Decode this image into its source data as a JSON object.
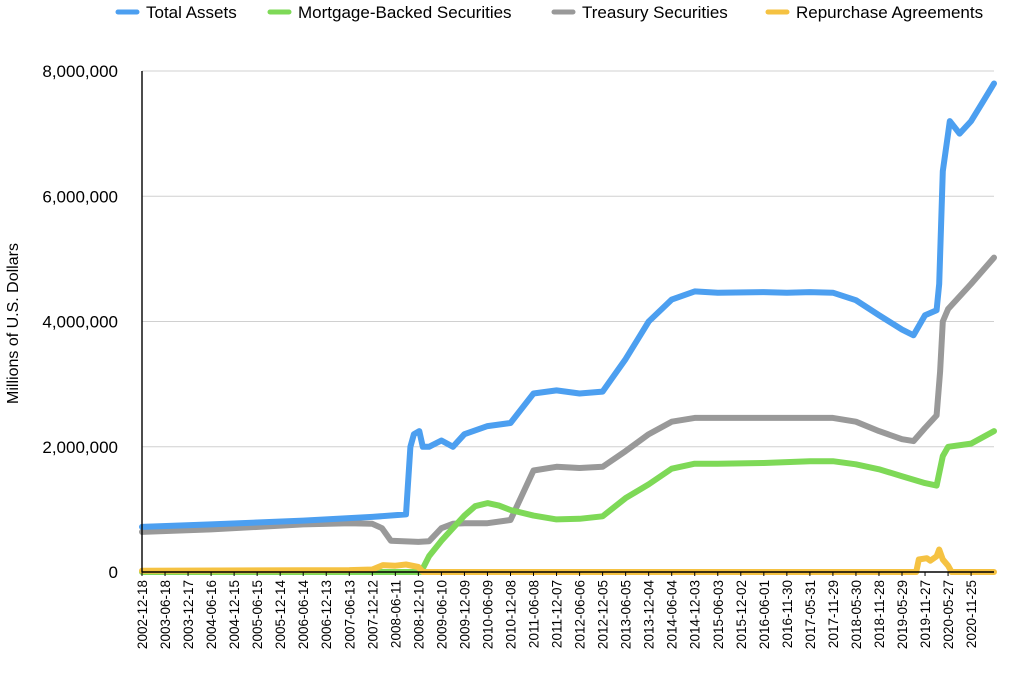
{
  "chart_data": {
    "type": "line",
    "title": "",
    "xlabel": "",
    "ylabel": "Millions of U.S. Dollars",
    "ylim": [
      0,
      8000000
    ],
    "yticks": [
      0,
      2000000,
      4000000,
      6000000,
      8000000
    ],
    "ytick_labels": [
      "0",
      "2,000,000",
      "4,000,000",
      "6,000,000",
      "8,000,000"
    ],
    "xlim": [
      "2002-12-18",
      "2021-05-25"
    ],
    "xtick_labels": [
      "2002-12-18",
      "2003-06-18",
      "2003-12-17",
      "2004-06-16",
      "2004-12-15",
      "2005-06-15",
      "2005-12-14",
      "2006-06-14",
      "2006-12-13",
      "2007-06-13",
      "2007-12-12",
      "2008-06-11",
      "2008-12-10",
      "2009-06-10",
      "2009-12-09",
      "2010-06-09",
      "2010-12-08",
      "2011-06-08",
      "2011-12-07",
      "2012-06-06",
      "2012-12-05",
      "2013-06-05",
      "2013-12-04",
      "2014-06-04",
      "2014-12-03",
      "2015-06-03",
      "2015-12-02",
      "2016-06-01",
      "2016-11-30",
      "2017-05-31",
      "2017-11-29",
      "2018-05-30",
      "2018-11-28",
      "2019-05-29",
      "2019-11-27",
      "2020-05-27",
      "2020-11-25"
    ],
    "grid": true,
    "legend_position": "top",
    "series": [
      {
        "name": "Total Assets",
        "color": "#4c9ff0",
        "points": [
          [
            "2002-12-18",
            720000
          ],
          [
            "2004-06-16",
            760000
          ],
          [
            "2006-06-14",
            820000
          ],
          [
            "2007-06-13",
            860000
          ],
          [
            "2007-12-12",
            880000
          ],
          [
            "2008-09-03",
            920000
          ],
          [
            "2008-10-08",
            2000000
          ],
          [
            "2008-11-05",
            2200000
          ],
          [
            "2008-12-17",
            2250000
          ],
          [
            "2009-01-14",
            2000000
          ],
          [
            "2009-03-04",
            2000000
          ],
          [
            "2009-06-10",
            2100000
          ],
          [
            "2009-09-09",
            2000000
          ],
          [
            "2009-12-09",
            2200000
          ],
          [
            "2010-06-09",
            2330000
          ],
          [
            "2010-12-08",
            2380000
          ],
          [
            "2011-06-08",
            2850000
          ],
          [
            "2011-12-07",
            2900000
          ],
          [
            "2012-06-06",
            2850000
          ],
          [
            "2012-12-05",
            2880000
          ],
          [
            "2013-06-05",
            3400000
          ],
          [
            "2013-12-04",
            4000000
          ],
          [
            "2014-06-04",
            4350000
          ],
          [
            "2014-12-03",
            4480000
          ],
          [
            "2015-06-03",
            4460000
          ],
          [
            "2016-06-01",
            4470000
          ],
          [
            "2016-11-30",
            4460000
          ],
          [
            "2017-05-31",
            4470000
          ],
          [
            "2017-11-29",
            4460000
          ],
          [
            "2018-05-30",
            4340000
          ],
          [
            "2018-11-28",
            4100000
          ],
          [
            "2019-05-29",
            3870000
          ],
          [
            "2019-08-28",
            3780000
          ],
          [
            "2019-11-27",
            4100000
          ],
          [
            "2020-02-26",
            4180000
          ],
          [
            "2020-03-18",
            4600000
          ],
          [
            "2020-04-15",
            6400000
          ],
          [
            "2020-05-27",
            7000000
          ],
          [
            "2020-06-10",
            7200000
          ],
          [
            "2020-08-26",
            7000000
          ],
          [
            "2020-11-25",
            7200000
          ],
          [
            "2021-02-24",
            7500000
          ],
          [
            "2021-05-25",
            7800000
          ]
        ]
      },
      {
        "name": "Mortgage-Backed Securities",
        "color": "#7ed957",
        "points": [
          [
            "2002-12-18",
            0
          ],
          [
            "2008-12-31",
            0
          ],
          [
            "2009-03-04",
            250000
          ],
          [
            "2009-06-10",
            500000
          ],
          [
            "2009-12-09",
            900000
          ],
          [
            "2010-03-03",
            1050000
          ],
          [
            "2010-06-09",
            1100000
          ],
          [
            "2010-09-08",
            1060000
          ],
          [
            "2010-12-08",
            990000
          ],
          [
            "2011-06-08",
            900000
          ],
          [
            "2011-12-07",
            840000
          ],
          [
            "2012-06-06",
            850000
          ],
          [
            "2012-12-05",
            890000
          ],
          [
            "2013-06-05",
            1180000
          ],
          [
            "2013-12-04",
            1400000
          ],
          [
            "2014-06-04",
            1650000
          ],
          [
            "2014-12-03",
            1730000
          ],
          [
            "2015-06-03",
            1730000
          ],
          [
            "2016-06-01",
            1740000
          ],
          [
            "2017-05-31",
            1770000
          ],
          [
            "2017-11-29",
            1770000
          ],
          [
            "2018-05-30",
            1720000
          ],
          [
            "2018-11-28",
            1640000
          ],
          [
            "2019-05-29",
            1530000
          ],
          [
            "2019-11-27",
            1420000
          ],
          [
            "2020-02-26",
            1380000
          ],
          [
            "2020-04-15",
            1850000
          ],
          [
            "2020-05-27",
            2000000
          ],
          [
            "2020-11-25",
            2050000
          ],
          [
            "2021-05-25",
            2250000
          ]
        ]
      },
      {
        "name": "Treasury Securities",
        "color": "#999999",
        "points": [
          [
            "2002-12-18",
            640000
          ],
          [
            "2004-06-16",
            680000
          ],
          [
            "2006-06-14",
            760000
          ],
          [
            "2007-06-13",
            780000
          ],
          [
            "2007-12-12",
            770000
          ],
          [
            "2008-02-27",
            700000
          ],
          [
            "2008-05-07",
            500000
          ],
          [
            "2008-12-10",
            480000
          ],
          [
            "2009-03-04",
            490000
          ],
          [
            "2009-06-10",
            700000
          ],
          [
            "2009-09-09",
            770000
          ],
          [
            "2009-12-09",
            780000
          ],
          [
            "2010-06-09",
            780000
          ],
          [
            "2010-12-08",
            830000
          ],
          [
            "2011-06-08",
            1620000
          ],
          [
            "2011-12-07",
            1680000
          ],
          [
            "2012-06-06",
            1660000
          ],
          [
            "2012-12-05",
            1680000
          ],
          [
            "2013-06-05",
            1930000
          ],
          [
            "2013-12-04",
            2200000
          ],
          [
            "2014-06-04",
            2400000
          ],
          [
            "2014-12-03",
            2460000
          ],
          [
            "2015-12-02",
            2460000
          ],
          [
            "2016-11-30",
            2460000
          ],
          [
            "2017-11-29",
            2460000
          ],
          [
            "2018-05-30",
            2400000
          ],
          [
            "2018-11-28",
            2250000
          ],
          [
            "2019-05-29",
            2120000
          ],
          [
            "2019-08-28",
            2090000
          ],
          [
            "2019-11-27",
            2300000
          ],
          [
            "2020-02-26",
            2500000
          ],
          [
            "2020-03-25",
            3200000
          ],
          [
            "2020-04-15",
            4000000
          ],
          [
            "2020-05-27",
            4200000
          ],
          [
            "2020-11-25",
            4600000
          ],
          [
            "2021-05-25",
            5020000
          ]
        ]
      },
      {
        "name": "Repurchase Agreements",
        "color": "#f5c242",
        "points": [
          [
            "2002-12-18",
            20000
          ],
          [
            "2007-06-13",
            30000
          ],
          [
            "2007-12-12",
            40000
          ],
          [
            "2008-03-05",
            110000
          ],
          [
            "2008-06-11",
            100000
          ],
          [
            "2008-09-03",
            120000
          ],
          [
            "2008-12-10",
            80000
          ],
          [
            "2009-01-14",
            0
          ],
          [
            "2019-09-18",
            0
          ],
          [
            "2019-10-09",
            200000
          ],
          [
            "2019-12-11",
            220000
          ],
          [
            "2020-01-08",
            180000
          ],
          [
            "2020-02-26",
            250000
          ],
          [
            "2020-03-18",
            360000
          ],
          [
            "2020-04-15",
            200000
          ],
          [
            "2020-05-27",
            100000
          ],
          [
            "2020-06-24",
            0
          ],
          [
            "2021-05-25",
            0
          ]
        ]
      }
    ]
  }
}
